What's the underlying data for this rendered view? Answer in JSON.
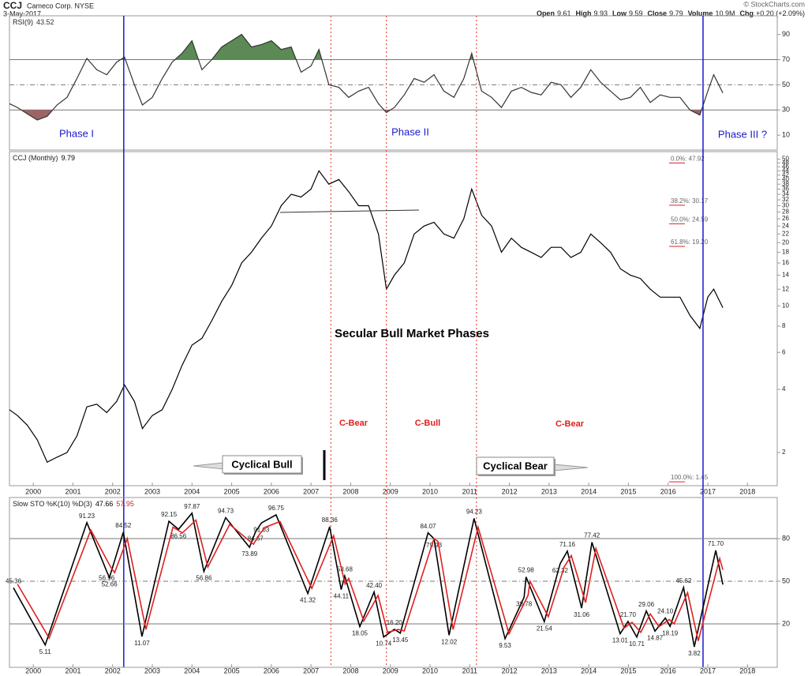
{
  "header": {
    "ticker": "CCJ",
    "company": "Cameco Corp. NYSE",
    "date": "3-May-2017",
    "source": "© StockCharts.com",
    "quote": [
      {
        "label": "Open",
        "value": "9.61"
      },
      {
        "label": "High",
        "value": "9.93"
      },
      {
        "label": "Low",
        "value": "9.59"
      },
      {
        "label": "Close",
        "value": "9.79"
      },
      {
        "label": "Volume",
        "value": "10.9M"
      },
      {
        "label": "Chg",
        "value": "+0.20 (+2.09%)"
      }
    ]
  },
  "annotations": [
    "Phase I",
    "Phase II",
    "Phase III ?",
    "Secular Bull Market Phases",
    "C-Bear",
    "C-Bull",
    "C-Bear",
    "Cyclical Bull",
    "Cyclical Bear"
  ],
  "chart_data": [
    {
      "type": "line",
      "legend": "RSI(9)",
      "xlim": [
        1999.4,
        2018.75
      ],
      "ylim": [
        -1.8,
        104.8
      ],
      "yticks": [
        10,
        30,
        50,
        70,
        90
      ],
      "reference_lines": [
        {
          "value": 30,
          "dash": false
        },
        {
          "value": 50,
          "dash": true
        },
        {
          "value": 70,
          "dash": false
        }
      ],
      "overbought": 70,
      "oversold": 30,
      "overbought_color": "#5b8a55",
      "oversold_color": "#9c6464",
      "x": [
        1999.4,
        1999.6,
        1999.85,
        2000.1,
        2000.35,
        2000.6,
        2000.85,
        2001.1,
        2001.35,
        2001.6,
        2001.85,
        2002.1,
        2002.3,
        2002.55,
        2002.75,
        2003.0,
        2003.25,
        2003.5,
        2003.75,
        2004.0,
        2004.25,
        2004.5,
        2004.75,
        2005.0,
        2005.25,
        2005.5,
        2005.75,
        2006.0,
        2006.25,
        2006.5,
        2006.75,
        2007.0,
        2007.2,
        2007.45,
        2007.7,
        2007.95,
        2008.2,
        2008.45,
        2008.7,
        2008.9,
        2009.1,
        2009.35,
        2009.6,
        2009.85,
        2010.1,
        2010.35,
        2010.6,
        2010.85,
        2011.05,
        2011.3,
        2011.55,
        2011.8,
        2012.05,
        2012.3,
        2012.55,
        2012.8,
        2013.05,
        2013.3,
        2013.55,
        2013.8,
        2014.05,
        2014.3,
        2014.55,
        2014.8,
        2015.05,
        2015.3,
        2015.55,
        2015.8,
        2016.05,
        2016.3,
        2016.55,
        2016.8,
        2017.0,
        2017.15,
        2017.38
      ],
      "series": [
        {
          "color": "#333333",
          "values": [
            35,
            32,
            27,
            22,
            25,
            34,
            40,
            55,
            71,
            62,
            58,
            68,
            72,
            50,
            34,
            40,
            55,
            68,
            75,
            85,
            62,
            70,
            80,
            85,
            90,
            80,
            82,
            85,
            78,
            80,
            60,
            65,
            78,
            50,
            48,
            40,
            45,
            48,
            35,
            28,
            32,
            42,
            55,
            52,
            58,
            45,
            40,
            55,
            75,
            45,
            40,
            32,
            45,
            48,
            44,
            42,
            52,
            50,
            40,
            48,
            62,
            52,
            45,
            38,
            40,
            48,
            36,
            42,
            40,
            40,
            30,
            26,
            45,
            58,
            43.52
          ]
        }
      ]
    },
    {
      "type": "line",
      "legend": "CCJ (Monthly)",
      "log_scale": true,
      "xlim": [
        1999.4,
        2018.75
      ],
      "ylim": [
        1.39,
        54.3
      ],
      "yticks": [
        2,
        4,
        6,
        8,
        10,
        12,
        14,
        16,
        18,
        20,
        22,
        24,
        26,
        28,
        30,
        32,
        34,
        36,
        38,
        40,
        42,
        44,
        46,
        48,
        50
      ],
      "xticks": [
        2000,
        2001,
        2002,
        2003,
        2004,
        2005,
        2006,
        2007,
        2008,
        2009,
        2010,
        2011,
        2012,
        2013,
        2014,
        2015,
        2016,
        2017,
        2018
      ],
      "fib_levels": [
        {
          "label": "0.0%: 47.92",
          "value": 47.92
        },
        {
          "label": "38.2%: 30.17",
          "value": 30.17
        },
        {
          "label": "50.0%: 24.59",
          "value": 24.59
        },
        {
          "label": "61.8%: 19.20",
          "value": 19.2
        },
        {
          "label": "100.0%: 1.45",
          "value": 1.45
        }
      ],
      "vlines": [
        {
          "x": 2002.28,
          "color": "#1a1acc",
          "dotted": false
        },
        {
          "x": 2007.5,
          "color": "#e03020",
          "dotted": true
        },
        {
          "x": 2008.9,
          "color": "#e03020",
          "dotted": true
        },
        {
          "x": 2011.17,
          "color": "#e03020",
          "dotted": true
        },
        {
          "x": 2016.88,
          "color": "#1a1acc",
          "dotted": false
        }
      ],
      "x": [
        1999.4,
        1999.6,
        1999.85,
        2000.1,
        2000.35,
        2000.6,
        2000.85,
        2001.1,
        2001.35,
        2001.6,
        2001.85,
        2002.1,
        2002.3,
        2002.55,
        2002.75,
        2003.0,
        2003.25,
        2003.5,
        2003.75,
        2004.0,
        2004.25,
        2004.5,
        2004.75,
        2005.0,
        2005.25,
        2005.5,
        2005.75,
        2006.0,
        2006.25,
        2006.5,
        2006.75,
        2007.0,
        2007.2,
        2007.45,
        2007.7,
        2007.95,
        2008.2,
        2008.45,
        2008.7,
        2008.9,
        2009.1,
        2009.35,
        2009.6,
        2009.85,
        2010.1,
        2010.35,
        2010.6,
        2010.85,
        2011.05,
        2011.3,
        2011.55,
        2011.8,
        2012.05,
        2012.3,
        2012.55,
        2012.8,
        2013.05,
        2013.3,
        2013.55,
        2013.8,
        2014.05,
        2014.3,
        2014.55,
        2014.8,
        2015.05,
        2015.3,
        2015.55,
        2015.8,
        2016.05,
        2016.3,
        2016.55,
        2016.8,
        2017.0,
        2017.15,
        2017.38
      ],
      "series": [
        {
          "color": "#000000",
          "values": [
            3.2,
            3.0,
            2.7,
            2.3,
            1.8,
            1.9,
            2.0,
            2.4,
            3.3,
            3.4,
            3.1,
            3.5,
            4.2,
            3.5,
            2.6,
            3.0,
            3.2,
            4.0,
            5.2,
            6.5,
            7.0,
            8.5,
            10.5,
            12.5,
            16,
            18,
            21,
            24,
            30,
            34,
            33,
            36,
            44,
            38,
            40,
            35,
            30,
            30,
            22,
            12,
            14,
            16,
            22,
            24,
            25,
            22,
            21,
            26,
            36,
            27,
            24,
            18,
            21,
            19,
            18,
            17,
            19,
            19,
            17,
            18,
            22,
            20,
            18,
            15,
            14,
            13.5,
            12,
            11,
            11,
            11,
            9,
            7.8,
            11,
            12,
            9.79
          ]
        }
      ]
    },
    {
      "type": "line",
      "legend": "Slow STO %K(10) %D(3)",
      "xlim": [
        1999.4,
        2018.75
      ],
      "ylim": [
        -10.6,
        108.9
      ],
      "yticks": [
        20,
        50,
        80
      ],
      "xticks": [
        2000,
        2001,
        2002,
        2003,
        2004,
        2005,
        2006,
        2007,
        2008,
        2009,
        2010,
        2011,
        2012,
        2013,
        2014,
        2015,
        2016,
        2017,
        2018
      ],
      "reference_lines": [
        {
          "value": 20,
          "dash": false
        },
        {
          "value": 50,
          "dash": true
        },
        {
          "value": 80,
          "dash": false
        }
      ],
      "series": [
        {
          "color": "#000000",
          "labeled": true,
          "x": [
            1999.5,
            2000.3,
            2001.35,
            2001.85,
            2001.92,
            2002.27,
            2002.74,
            2003.42,
            2003.66,
            2004.0,
            2004.3,
            2004.85,
            2005.45,
            2005.6,
            2005.75,
            2006.12,
            2006.92,
            2007.47,
            2007.76,
            2007.85,
            2008.23,
            2008.59,
            2008.83,
            2009.1,
            2009.25,
            2009.95,
            2010.1,
            2010.48,
            2011.11,
            2011.89,
            2012.37,
            2012.42,
            2012.88,
            2013.28,
            2013.46,
            2013.82,
            2014.08,
            2014.79,
            2014.99,
            2015.21,
            2015.45,
            2015.67,
            2015.93,
            2016.05,
            2016.39,
            2016.66,
            2017.2,
            2017.38
          ],
          "values": [
            45.36,
            5.11,
            91.23,
            56.96,
            52.66,
            84.52,
            11.07,
            92.15,
            86.56,
            97.87,
            56.86,
            94.73,
            73.89,
            84.67,
            91.03,
            96.75,
            41.32,
            88.36,
            44.11,
            53.68,
            18.05,
            42.4,
            10.74,
            16.2,
            13.45,
            84.07,
            79.93,
            12.02,
            94.23,
            9.53,
            38.78,
            52.98,
            21.54,
            62.32,
            71.16,
            31.06,
            77.42,
            13.01,
            21.7,
            10.71,
            29.06,
            14.87,
            24.1,
            18.19,
            45.62,
            3.82,
            71.7,
            47.66
          ],
          "value_labels": [
            "45.36",
            "5.11",
            "91.23",
            "56.96",
            "52.66",
            "84.52",
            "11.07",
            "92.15",
            "86.56",
            "97.87",
            "56.86",
            "94.73",
            "73.89",
            "84.67",
            "91.03",
            "96.75",
            "41.32",
            "88.36",
            "44.11",
            "53.68",
            "18.05",
            "42.40",
            "10.74",
            "16.20",
            "13.45",
            "84.07",
            "79.93",
            "12.02",
            "94.23",
            "9.53",
            "38.78",
            "52.98",
            "21.54",
            "62.32",
            "71.16",
            "31.06",
            "77.42",
            "13.01",
            "21.70",
            "10.71",
            "29.06",
            "14.87",
            "24.10",
            "18.19",
            "45.62",
            "3.82",
            "71.70",
            "47.66"
          ]
        },
        {
          "color": "#e02020",
          "labeled": false,
          "x": [
            1999.6,
            2000.4,
            2001.45,
            2001.95,
            2002.05,
            2002.37,
            2002.84,
            2003.52,
            2003.76,
            2004.1,
            2004.4,
            2004.95,
            2005.55,
            2005.7,
            2005.85,
            2006.22,
            2007.02,
            2007.57,
            2007.86,
            2007.95,
            2008.33,
            2008.69,
            2008.93,
            2009.2,
            2009.35,
            2010.1,
            2010.2,
            2010.58,
            2011.21,
            2011.99,
            2012.47,
            2012.52,
            2012.98,
            2013.38,
            2013.56,
            2013.92,
            2014.18,
            2014.89,
            2015.09,
            2015.31,
            2015.55,
            2015.77,
            2016.03,
            2016.15,
            2016.49,
            2016.76,
            2017.3,
            2017.38
          ],
          "values": [
            48,
            10,
            86,
            60,
            56,
            80,
            16,
            88,
            84,
            93,
            60,
            90,
            76,
            83,
            88,
            92,
            45,
            82,
            48,
            52,
            22,
            40,
            14,
            16,
            15,
            80,
            78,
            16,
            88,
            13,
            40,
            50,
            25,
            60,
            68,
            35,
            73,
            17,
            21,
            14,
            27,
            18,
            23,
            20,
            42,
            8,
            66,
            57.95
          ]
        }
      ]
    }
  ]
}
